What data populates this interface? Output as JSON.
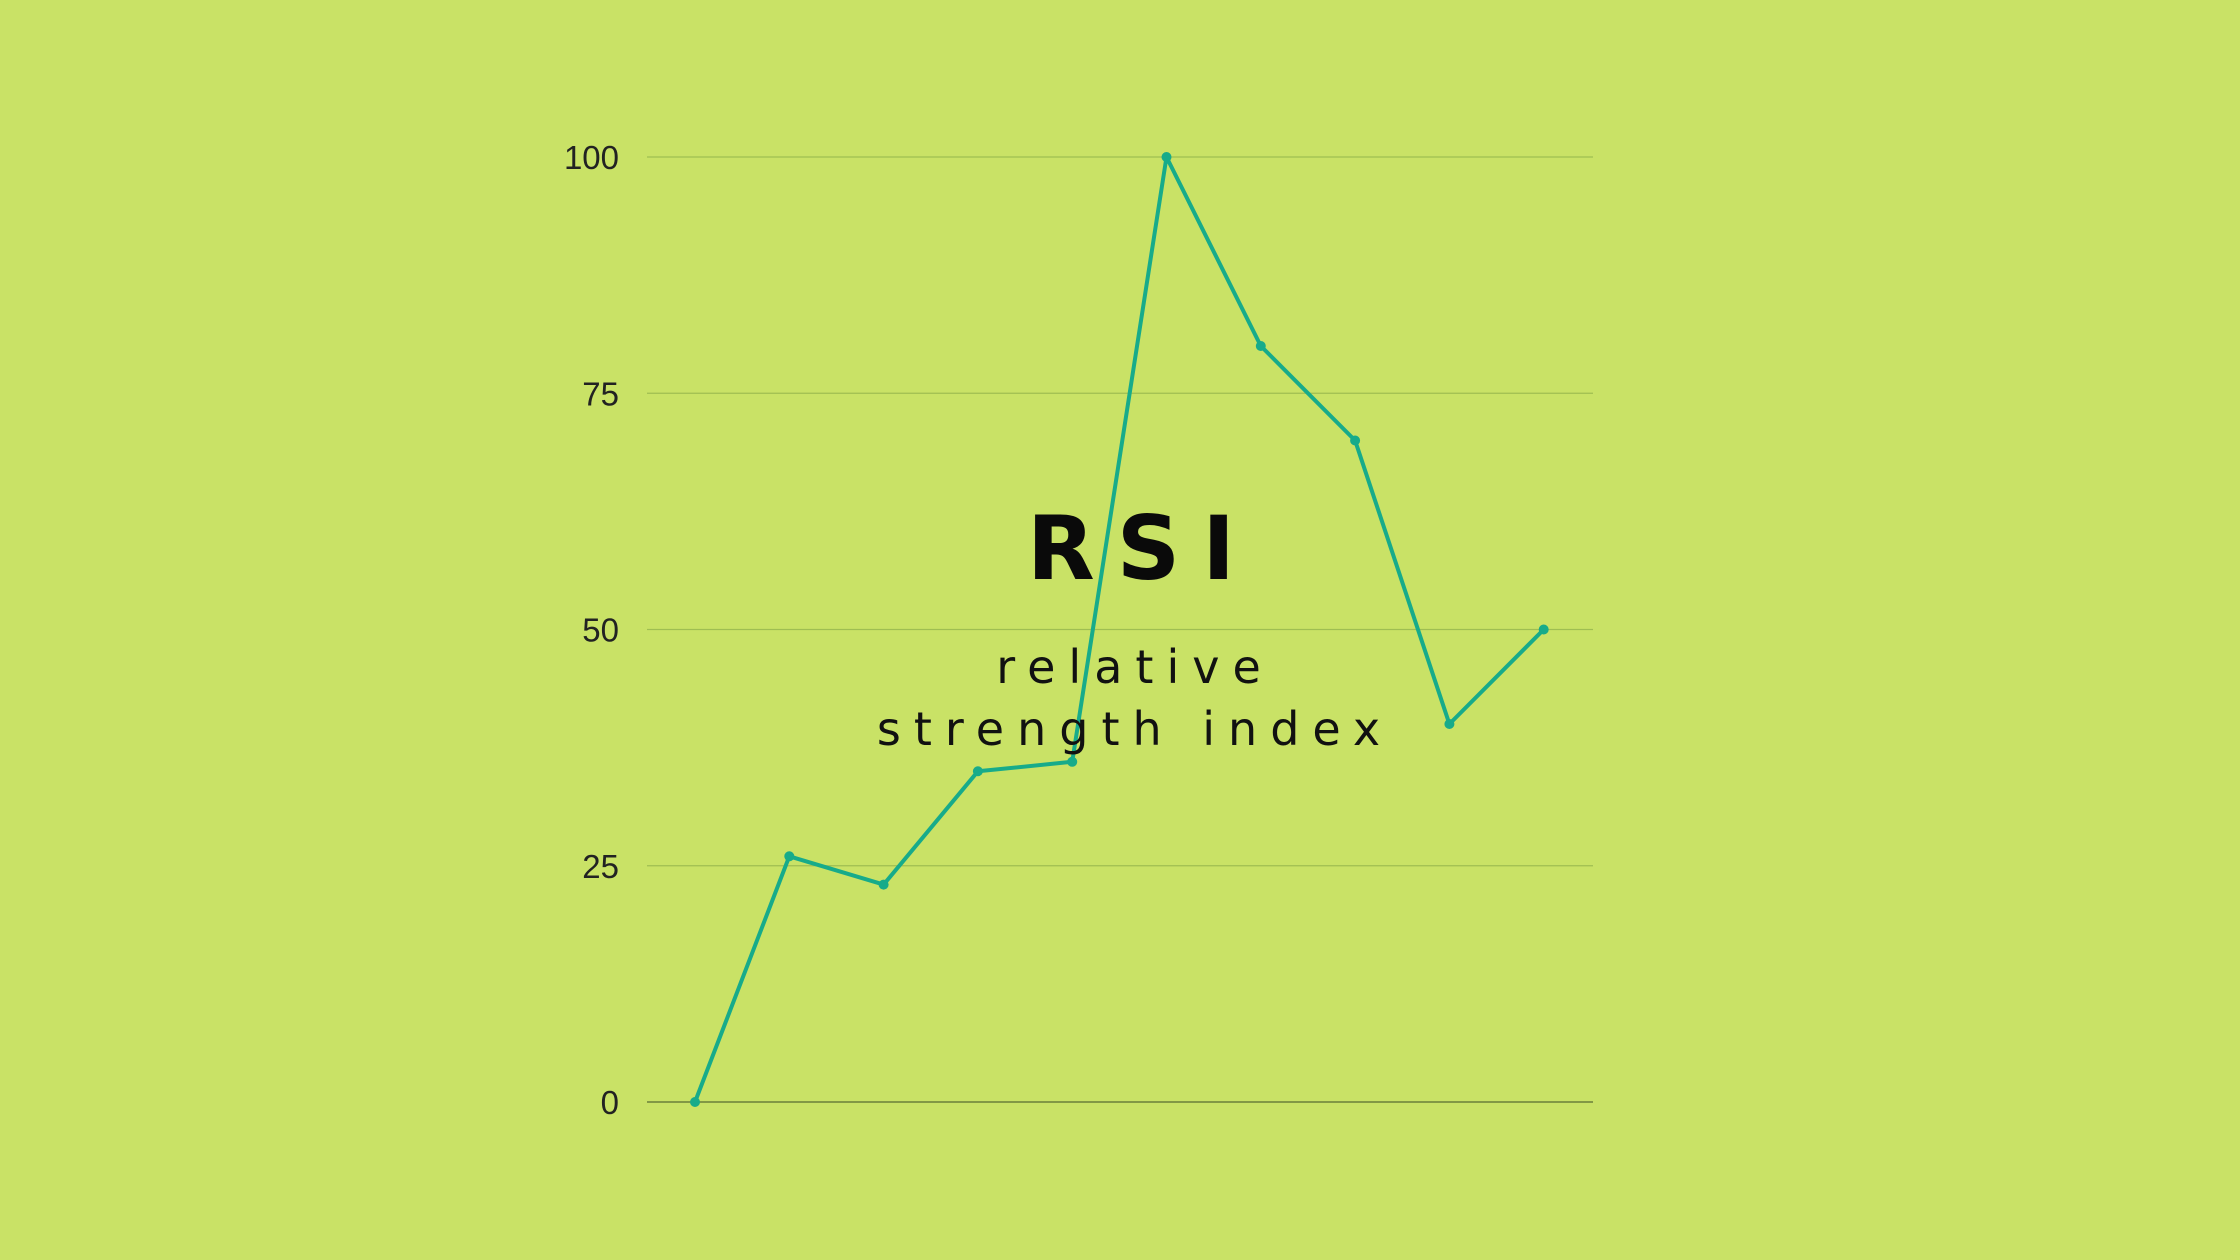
{
  "colors": {
    "background": "#c9e266",
    "line": "#17ab8a",
    "grid": "#9fbe52",
    "baseline": "#6b7f3a",
    "tick_text": "#222222"
  },
  "title": "RSI",
  "subtitle": "relative strength index",
  "chart_data": {
    "type": "line",
    "title": "RSI",
    "subtitle": "relative strength index",
    "xlabel": "",
    "ylabel": "",
    "ylim": [
      0,
      100
    ],
    "yticks": [
      "0",
      "25",
      "50",
      "75",
      "100"
    ],
    "grid": true,
    "legend": "none",
    "series": [
      {
        "values": [
          0,
          26,
          23,
          35,
          36,
          100,
          80,
          70,
          40,
          50
        ]
      }
    ]
  }
}
